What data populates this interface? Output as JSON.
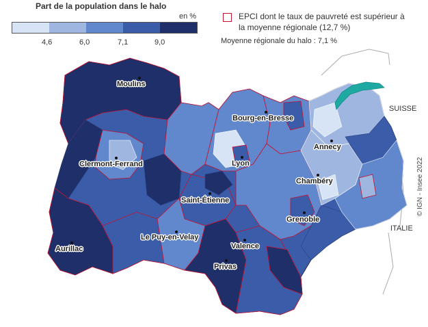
{
  "legend": {
    "title": "Part de la population dans le halo",
    "unit": "en %",
    "classes": [
      {
        "color": "#d6e4f5"
      },
      {
        "color": "#9fb7e0"
      },
      {
        "color": "#6188cc"
      },
      {
        "color": "#3a5ca9"
      },
      {
        "color": "#1f2f6a"
      }
    ],
    "thresholds": [
      "4,6",
      "6,0",
      "7,1",
      "9,0"
    ]
  },
  "epci_note": "EPCI dont le taux de pauvreté est supérieur à la moyenne régionale (12,7 %)",
  "regional_average": "Moyenne régionale du halo : 7,1 %",
  "cities": [
    {
      "name": "Moulins",
      "class": 5
    },
    {
      "name": "Bourg-en-Bresse",
      "class": 3
    },
    {
      "name": "Annecy",
      "class": 2
    },
    {
      "name": "Clermont-Ferrand",
      "class": 2
    },
    {
      "name": "Lyon",
      "class": 4
    },
    {
      "name": "Chambéry",
      "class": 2
    },
    {
      "name": "Saint-Étienne",
      "class": 4
    },
    {
      "name": "Grenoble",
      "class": 3
    },
    {
      "name": "Le Puy-en-Velay",
      "class": 4
    },
    {
      "name": "Valence",
      "class": 4
    },
    {
      "name": "Aurillac",
      "class": 5
    },
    {
      "name": "Privas",
      "class": 5
    }
  ],
  "countries": {
    "switzerland": "SUISSE",
    "italy": "ITALIE"
  },
  "copyright": "© IGN - Insee 2022"
}
